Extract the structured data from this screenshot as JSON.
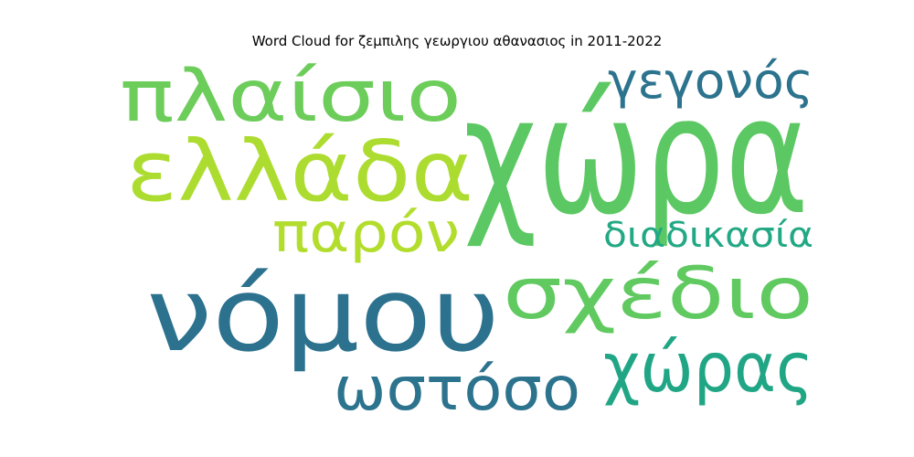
{
  "chart_data": {
    "type": "wordcloud",
    "title": "Word Cloud for ζεμπιλης γεωργιου αθανασιος in 2011-2022",
    "words": [
      {
        "text": "χώρα",
        "color": "#5cc863"
      },
      {
        "text": "νόμου",
        "color": "#2c728e"
      },
      {
        "text": "ελλάδα",
        "color": "#addc30"
      },
      {
        "text": "πλαίσιο",
        "color": "#6ccd5a"
      },
      {
        "text": "σχέδιο",
        "color": "#60ca60"
      },
      {
        "text": "χώρας",
        "color": "#21a685"
      },
      {
        "text": "ωστόσο",
        "color": "#2c738e"
      },
      {
        "text": "παρόν",
        "color": "#b2dd2d"
      },
      {
        "text": "γεγονός",
        "color": "#2c738e"
      },
      {
        "text": "διαδικασία",
        "color": "#22a884"
      }
    ]
  }
}
